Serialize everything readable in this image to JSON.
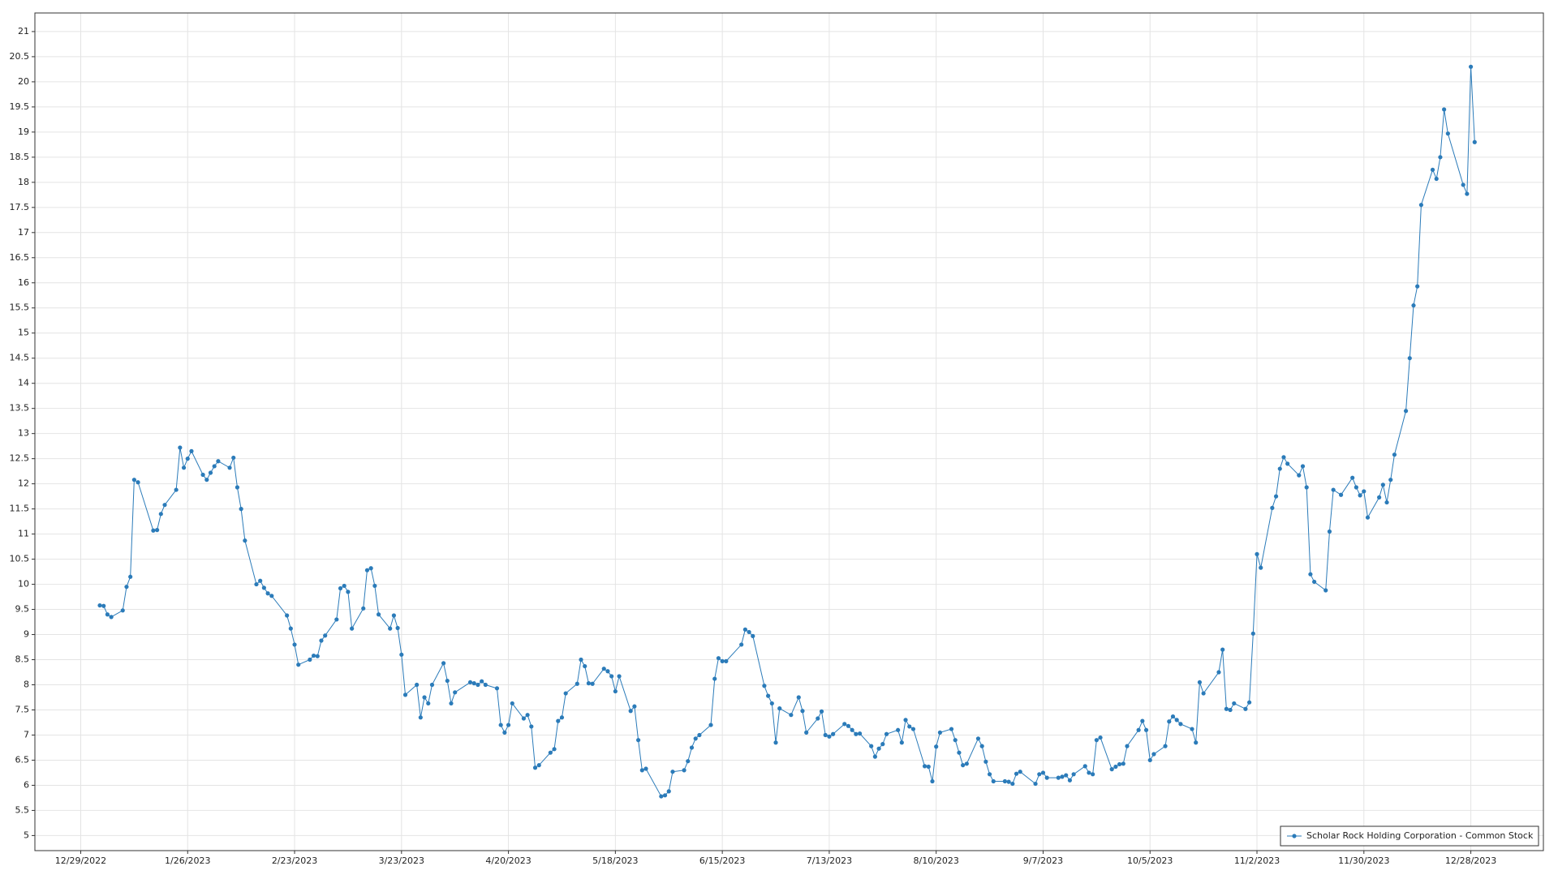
{
  "chart_data": {
    "type": "line",
    "x": [
      "1/3/2023",
      "1/4/2023",
      "1/5/2023",
      "1/6/2023",
      "1/9/2023",
      "1/10/2023",
      "1/11/2023",
      "1/12/2023",
      "1/13/2023",
      "1/17/2023",
      "1/18/2023",
      "1/19/2023",
      "1/20/2023",
      "1/23/2023",
      "1/24/2023",
      "1/25/2023",
      "1/26/2023",
      "1/27/2023",
      "1/30/2023",
      "1/31/2023",
      "2/1/2023",
      "2/2/2023",
      "2/3/2023",
      "2/6/2023",
      "2/7/2023",
      "2/8/2023",
      "2/9/2023",
      "2/10/2023",
      "2/13/2023",
      "2/14/2023",
      "2/15/2023",
      "2/16/2023",
      "2/17/2023",
      "2/21/2023",
      "2/22/2023",
      "2/23/2023",
      "2/24/2023",
      "2/27/2023",
      "2/28/2023",
      "3/1/2023",
      "3/2/2023",
      "3/3/2023",
      "3/6/2023",
      "3/7/2023",
      "3/8/2023",
      "3/9/2023",
      "3/10/2023",
      "3/13/2023",
      "3/14/2023",
      "3/15/2023",
      "3/16/2023",
      "3/17/2023",
      "3/20/2023",
      "3/21/2023",
      "3/22/2023",
      "3/23/2023",
      "3/24/2023",
      "3/27/2023",
      "3/28/2023",
      "3/29/2023",
      "3/30/2023",
      "3/31/2023",
      "4/3/2023",
      "4/4/2023",
      "4/5/2023",
      "4/6/2023",
      "4/10/2023",
      "4/11/2023",
      "4/12/2023",
      "4/13/2023",
      "4/14/2023",
      "4/17/2023",
      "4/18/2023",
      "4/19/2023",
      "4/20/2023",
      "4/21/2023",
      "4/24/2023",
      "4/25/2023",
      "4/26/2023",
      "4/27/2023",
      "4/28/2023",
      "5/1/2023",
      "5/2/2023",
      "5/3/2023",
      "5/4/2023",
      "5/5/2023",
      "5/8/2023",
      "5/9/2023",
      "5/10/2023",
      "5/11/2023",
      "5/12/2023",
      "5/15/2023",
      "5/16/2023",
      "5/17/2023",
      "5/18/2023",
      "5/19/2023",
      "5/22/2023",
      "5/23/2023",
      "5/24/2023",
      "5/25/2023",
      "5/26/2023",
      "5/30/2023",
      "5/31/2023",
      "6/1/2023",
      "6/2/2023",
      "6/5/2023",
      "6/6/2023",
      "6/7/2023",
      "6/8/2023",
      "6/9/2023",
      "6/12/2023",
      "6/13/2023",
      "6/14/2023",
      "6/15/2023",
      "6/16/2023",
      "6/20/2023",
      "6/21/2023",
      "6/22/2023",
      "6/23/2023",
      "6/26/2023",
      "6/27/2023",
      "6/28/2023",
      "6/29/2023",
      "6/30/2023",
      "7/3/2023",
      "7/5/2023",
      "7/6/2023",
      "7/7/2023",
      "7/10/2023",
      "7/11/2023",
      "7/12/2023",
      "7/13/2023",
      "7/14/2023",
      "7/17/2023",
      "7/18/2023",
      "7/19/2023",
      "7/20/2023",
      "7/21/2023",
      "7/24/2023",
      "7/25/2023",
      "7/26/2023",
      "7/27/2023",
      "7/28/2023",
      "7/31/2023",
      "8/1/2023",
      "8/2/2023",
      "8/3/2023",
      "8/4/2023",
      "8/7/2023",
      "8/8/2023",
      "8/9/2023",
      "8/10/2023",
      "8/11/2023",
      "8/14/2023",
      "8/15/2023",
      "8/16/2023",
      "8/17/2023",
      "8/18/2023",
      "8/21/2023",
      "8/22/2023",
      "8/23/2023",
      "8/24/2023",
      "8/25/2023",
      "8/28/2023",
      "8/29/2023",
      "8/30/2023",
      "8/31/2023",
      "9/1/2023",
      "9/5/2023",
      "9/6/2023",
      "9/7/2023",
      "9/8/2023",
      "9/11/2023",
      "9/12/2023",
      "9/13/2023",
      "9/14/2023",
      "9/15/2023",
      "9/18/2023",
      "9/19/2023",
      "9/20/2023",
      "9/21/2023",
      "9/22/2023",
      "9/25/2023",
      "9/26/2023",
      "9/27/2023",
      "9/28/2023",
      "9/29/2023",
      "10/2/2023",
      "10/3/2023",
      "10/4/2023",
      "10/5/2023",
      "10/6/2023",
      "10/9/2023",
      "10/10/2023",
      "10/11/2023",
      "10/12/2023",
      "10/13/2023",
      "10/16/2023",
      "10/17/2023",
      "10/18/2023",
      "10/19/2023",
      "10/23/2023",
      "10/24/2023",
      "10/25/2023",
      "10/26/2023",
      "10/27/2023",
      "10/30/2023",
      "10/31/2023",
      "11/1/2023",
      "11/2/2023",
      "11/3/2023",
      "11/6/2023",
      "11/7/2023",
      "11/8/2023",
      "11/9/2023",
      "11/10/2023",
      "11/13/2023",
      "11/14/2023",
      "11/15/2023",
      "11/16/2023",
      "11/17/2023",
      "11/20/2023",
      "11/21/2023",
      "11/22/2023",
      "11/24/2023",
      "11/27/2023",
      "11/28/2023",
      "11/29/2023",
      "11/30/2023",
      "12/1/2023",
      "12/4/2023",
      "12/5/2023",
      "12/6/2023",
      "12/7/2023",
      "12/8/2023",
      "12/11/2023",
      "12/12/2023",
      "12/13/2023",
      "12/14/2023",
      "12/15/2023",
      "12/18/2023",
      "12/19/2023",
      "12/20/2023",
      "12/21/2023",
      "12/22/2023",
      "12/26/2023",
      "12/27/2023",
      "12/28/2023",
      "12/29/2023"
    ],
    "series": [
      {
        "name": "Scholar Rock Holding Corporation - Common Stock",
        "color": "#2b7bb9",
        "values": [
          9.58,
          9.57,
          9.4,
          9.35,
          9.48,
          9.95,
          10.15,
          12.08,
          12.03,
          11.07,
          11.08,
          11.4,
          11.58,
          11.88,
          12.72,
          12.32,
          12.5,
          12.65,
          12.18,
          12.08,
          12.22,
          12.35,
          12.45,
          12.32,
          12.52,
          11.93,
          11.5,
          10.87,
          10.0,
          10.07,
          9.93,
          9.82,
          9.77,
          9.38,
          9.12,
          8.8,
          8.4,
          8.5,
          8.58,
          8.57,
          8.88,
          8.98,
          9.3,
          9.92,
          9.97,
          9.85,
          9.12,
          9.52,
          10.28,
          10.32,
          9.97,
          9.4,
          9.12,
          9.38,
          9.13,
          8.6,
          7.8,
          8.0,
          7.35,
          7.75,
          7.63,
          8.0,
          8.43,
          8.08,
          7.63,
          7.85,
          8.05,
          8.03,
          8.0,
          8.07,
          8.0,
          7.93,
          7.2,
          7.05,
          7.2,
          7.63,
          7.33,
          7.4,
          7.17,
          6.35,
          6.4,
          6.65,
          6.72,
          7.28,
          7.35,
          7.83,
          8.02,
          8.5,
          8.37,
          8.03,
          8.02,
          8.32,
          8.27,
          8.17,
          7.87,
          8.17,
          7.48,
          7.57,
          6.9,
          6.3,
          6.33,
          5.78,
          5.8,
          5.88,
          6.27,
          6.3,
          6.48,
          6.75,
          6.93,
          7.0,
          7.2,
          8.12,
          8.53,
          8.47,
          8.47,
          8.8,
          9.1,
          9.05,
          8.97,
          7.98,
          7.78,
          7.63,
          6.85,
          7.53,
          7.4,
          7.75,
          7.48,
          7.05,
          7.33,
          7.47,
          7.0,
          6.97,
          7.02,
          7.22,
          7.18,
          7.1,
          7.02,
          7.03,
          6.78,
          6.57,
          6.73,
          6.82,
          7.02,
          7.1,
          6.85,
          7.3,
          7.17,
          7.12,
          6.38,
          6.37,
          6.08,
          6.77,
          7.05,
          7.12,
          6.9,
          6.65,
          6.4,
          6.43,
          6.93,
          6.78,
          6.47,
          6.22,
          6.08,
          6.08,
          6.07,
          6.03,
          6.23,
          6.27,
          6.03,
          6.22,
          6.25,
          6.15,
          6.15,
          6.17,
          6.2,
          6.1,
          6.22,
          6.38,
          6.25,
          6.22,
          6.9,
          6.95,
          6.32,
          6.37,
          6.42,
          6.43,
          6.78,
          7.1,
          7.28,
          7.1,
          6.5,
          6.62,
          6.78,
          7.27,
          7.37,
          7.3,
          7.22,
          7.12,
          6.85,
          8.05,
          7.83,
          8.25,
          8.7,
          7.52,
          7.5,
          7.63,
          7.52,
          7.65,
          9.02,
          10.6,
          10.33,
          11.52,
          11.75,
          12.3,
          12.53,
          12.4,
          12.17,
          12.35,
          11.93,
          10.2,
          10.05,
          9.88,
          11.05,
          11.88,
          11.78,
          12.12,
          11.93,
          11.77,
          11.85,
          11.33,
          11.73,
          11.98,
          11.63,
          12.08,
          12.58,
          13.45,
          14.5,
          15.55,
          15.93,
          17.55,
          18.25,
          18.07,
          18.5,
          19.45,
          18.97,
          17.95,
          17.77,
          20.3,
          18.8
        ]
      }
    ],
    "xlim": [
      "12/17/2022",
      "1/16/2024"
    ],
    "xticks": [
      "12/29/2022",
      "1/26/2023",
      "2/23/2023",
      "3/23/2023",
      "4/20/2023",
      "5/18/2023",
      "6/15/2023",
      "7/13/2023",
      "8/10/2023",
      "9/7/2023",
      "10/5/2023",
      "11/2/2023",
      "11/30/2023",
      "12/28/2023"
    ],
    "ylim": [
      4.7,
      21.37
    ],
    "yticks": [
      5,
      5.5,
      6,
      6.5,
      7,
      7.5,
      8,
      8.5,
      9,
      9.5,
      10,
      10.5,
      11,
      11.5,
      12,
      12.5,
      13,
      13.5,
      14,
      14.5,
      15,
      15.5,
      16,
      16.5,
      17,
      17.5,
      18,
      18.5,
      19,
      19.5,
      20,
      20.5,
      21
    ],
    "grid": true,
    "legend": "lower right"
  }
}
